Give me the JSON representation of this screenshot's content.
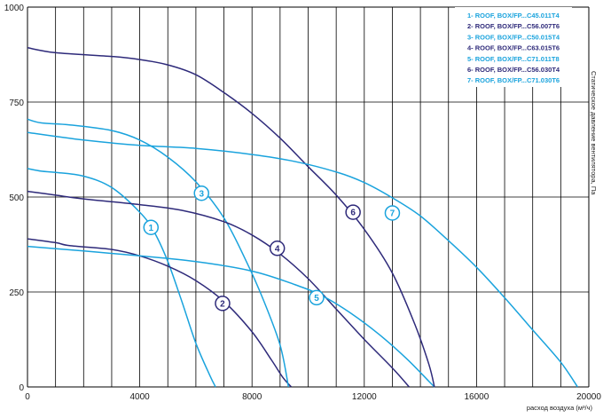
{
  "chart_data": {
    "type": "line",
    "title": "",
    "xlabel": "расход воздуха (м³/ч)",
    "ylabel": "Статическое давление вентилятора, Па",
    "xlim": [
      0,
      20000
    ],
    "ylim": [
      0,
      1000
    ],
    "x_ticks": [
      "0",
      "4000",
      "8000",
      "12000",
      "16000",
      "20000"
    ],
    "y_ticks": [
      "0",
      "250",
      "500",
      "750",
      "1000"
    ],
    "grid": true,
    "legend_position": "top-right",
    "colors": {
      "dark": "#2e2a7a",
      "light": "#1aa3dd",
      "grid": "#000000"
    },
    "series": [
      {
        "name": "1- ROOF, BOX/FP...C45.011T4",
        "label": "1",
        "color": "#1aa3dd",
        "label_at": [
          4400,
          420
        ],
        "points": [
          [
            0,
            575
          ],
          [
            500,
            568
          ],
          [
            1000,
            565
          ],
          [
            2000,
            555
          ],
          [
            3000,
            525
          ],
          [
            4000,
            460
          ],
          [
            4500,
            410
          ],
          [
            5000,
            330
          ],
          [
            5500,
            225
          ],
          [
            6000,
            115
          ],
          [
            6500,
            30
          ],
          [
            6700,
            0
          ]
        ]
      },
      {
        "name": "2- ROOF, BOX/FP...C56.007T6",
        "label": "2",
        "color": "#2e2a7a",
        "label_at": [
          6950,
          220
        ],
        "points": [
          [
            0,
            390
          ],
          [
            1000,
            380
          ],
          [
            1500,
            372
          ],
          [
            3000,
            362
          ],
          [
            4000,
            345
          ],
          [
            5000,
            318
          ],
          [
            6000,
            280
          ],
          [
            7000,
            225
          ],
          [
            8000,
            145
          ],
          [
            8700,
            70
          ],
          [
            9100,
            25
          ],
          [
            9400,
            0
          ]
        ]
      },
      {
        "name": "3- ROOF, BOX/FP...C50.015T4",
        "label": "3",
        "color": "#1aa3dd",
        "label_at": [
          6200,
          510
        ],
        "points": [
          [
            0,
            705
          ],
          [
            500,
            695
          ],
          [
            1500,
            690
          ],
          [
            3000,
            675
          ],
          [
            4000,
            650
          ],
          [
            5000,
            605
          ],
          [
            6000,
            540
          ],
          [
            7000,
            445
          ],
          [
            7800,
            330
          ],
          [
            8400,
            230
          ],
          [
            9000,
            110
          ],
          [
            9300,
            0
          ]
        ]
      },
      {
        "name": "4- ROOF, BOX/FP...C63.015T6",
        "label": "4",
        "color": "#2e2a7a",
        "label_at": [
          8900,
          365
        ],
        "points": [
          [
            0,
            515
          ],
          [
            1000,
            505
          ],
          [
            2000,
            495
          ],
          [
            4000,
            480
          ],
          [
            5500,
            465
          ],
          [
            7000,
            435
          ],
          [
            8000,
            400
          ],
          [
            9000,
            350
          ],
          [
            10000,
            285
          ],
          [
            11000,
            205
          ],
          [
            12000,
            125
          ],
          [
            13000,
            50
          ],
          [
            13600,
            0
          ]
        ]
      },
      {
        "name": "5- ROOF, BOX/FP...C71.011T8",
        "label": "5",
        "color": "#1aa3dd",
        "label_at": [
          10300,
          235
        ],
        "points": [
          [
            0,
            370
          ],
          [
            2000,
            358
          ],
          [
            4000,
            345
          ],
          [
            6000,
            330
          ],
          [
            8000,
            305
          ],
          [
            9500,
            270
          ],
          [
            10500,
            240
          ],
          [
            11500,
            195
          ],
          [
            12500,
            140
          ],
          [
            13500,
            75
          ],
          [
            14300,
            15
          ],
          [
            14500,
            0
          ]
        ]
      },
      {
        "name": "6- ROOF, BOX/FP...C56.030T4",
        "label": "6",
        "color": "#2e2a7a",
        "label_at": [
          11600,
          460
        ],
        "points": [
          [
            0,
            893
          ],
          [
            1000,
            880
          ],
          [
            3000,
            870
          ],
          [
            4000,
            862
          ],
          [
            5000,
            848
          ],
          [
            6000,
            822
          ],
          [
            7000,
            775
          ],
          [
            8000,
            720
          ],
          [
            9000,
            655
          ],
          [
            10000,
            580
          ],
          [
            11000,
            505
          ],
          [
            12000,
            415
          ],
          [
            13000,
            300
          ],
          [
            13800,
            165
          ],
          [
            14300,
            60
          ],
          [
            14500,
            0
          ]
        ]
      },
      {
        "name": "7- ROOF, BOX/FP...C71.030T6",
        "label": "7",
        "color": "#1aa3dd",
        "label_at": [
          13000,
          458
        ],
        "points": [
          [
            0,
            670
          ],
          [
            2000,
            650
          ],
          [
            4000,
            636
          ],
          [
            6000,
            628
          ],
          [
            8000,
            612
          ],
          [
            9500,
            594
          ],
          [
            11000,
            566
          ],
          [
            12000,
            538
          ],
          [
            13000,
            498
          ],
          [
            14000,
            450
          ],
          [
            15000,
            385
          ],
          [
            16000,
            315
          ],
          [
            17000,
            235
          ],
          [
            18000,
            150
          ],
          [
            19000,
            65
          ],
          [
            19600,
            0
          ]
        ]
      }
    ]
  }
}
